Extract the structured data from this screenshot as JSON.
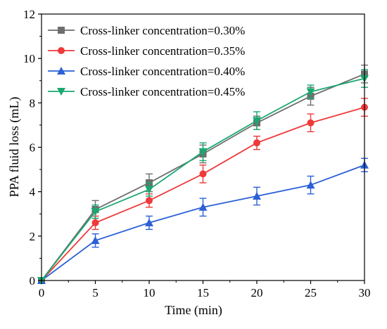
{
  "chart_data": {
    "type": "line",
    "title": "",
    "xlabel": "Time (min)",
    "ylabel": "PPA fluid loss (mL)",
    "xlim": [
      0,
      30
    ],
    "ylim": [
      0,
      12
    ],
    "x_ticks": [
      0,
      5,
      10,
      15,
      20,
      25,
      30
    ],
    "y_ticks": [
      0,
      2,
      4,
      6,
      8,
      10,
      12
    ],
    "grid": false,
    "legend_position": "top-left",
    "series": [
      {
        "name": "Cross-linker concentration=0.30%",
        "color": "#6e6e6e",
        "marker": "square",
        "x": [
          0,
          5,
          10,
          15,
          20,
          25,
          30
        ],
        "y": [
          0,
          3.2,
          4.4,
          5.7,
          7.1,
          8.3,
          9.3
        ],
        "error": [
          0,
          0.4,
          0.4,
          0.4,
          0.3,
          0.4,
          0.4
        ]
      },
      {
        "name": "Cross-linker concentration=0.35%",
        "color": "#ee3a3a",
        "marker": "circle",
        "x": [
          0,
          5,
          10,
          15,
          20,
          25,
          30
        ],
        "y": [
          0,
          2.6,
          3.6,
          4.8,
          6.2,
          7.1,
          7.8
        ],
        "error": [
          0,
          0.3,
          0.3,
          0.4,
          0.3,
          0.4,
          0.4
        ]
      },
      {
        "name": "Cross-linker concentration=0.40%",
        "color": "#2c60d6",
        "marker": "triangle-up",
        "x": [
          0,
          5,
          10,
          15,
          20,
          25,
          30
        ],
        "y": [
          0,
          1.8,
          2.6,
          3.3,
          3.8,
          4.3,
          5.2
        ],
        "error": [
          0,
          0.3,
          0.3,
          0.4,
          0.4,
          0.4,
          0.3
        ]
      },
      {
        "name": "Cross-linker concentration=0.45%",
        "color": "#1aa870",
        "marker": "triangle-down",
        "x": [
          0,
          5,
          10,
          15,
          20,
          25,
          30
        ],
        "y": [
          0,
          3.1,
          4.1,
          5.8,
          7.2,
          8.5,
          9.1
        ],
        "error": [
          0,
          0.3,
          0.3,
          0.4,
          0.4,
          0.3,
          0.4
        ]
      }
    ]
  }
}
